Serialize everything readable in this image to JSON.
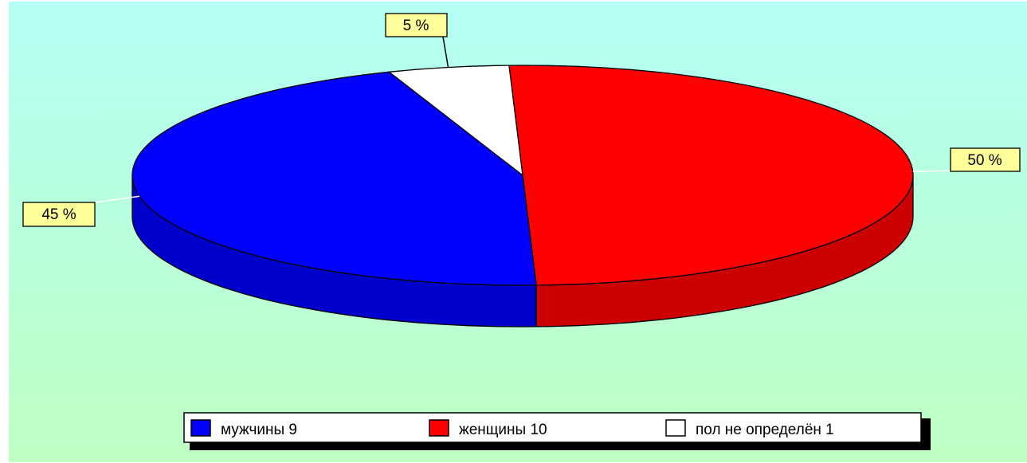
{
  "chart_data": {
    "type": "pie",
    "style": "3d",
    "title": "",
    "slices": [
      {
        "label": "мужчины 9",
        "value": 9,
        "percent_label": "45 %",
        "color": "#0000ff",
        "side_color": "#0000cc"
      },
      {
        "label": "женщины 10",
        "value": 10,
        "percent_label": "50 %",
        "color": "#ff0000",
        "side_color": "#cc0000"
      },
      {
        "label": "пол не определён 1",
        "value": 1,
        "percent_label": "5 %",
        "color": "#ffffff",
        "side_color": "#cccccc"
      }
    ],
    "legend_position": "bottom",
    "background": {
      "top_color": "#b3fff5",
      "bottom_color": "#bfffc3"
    }
  }
}
